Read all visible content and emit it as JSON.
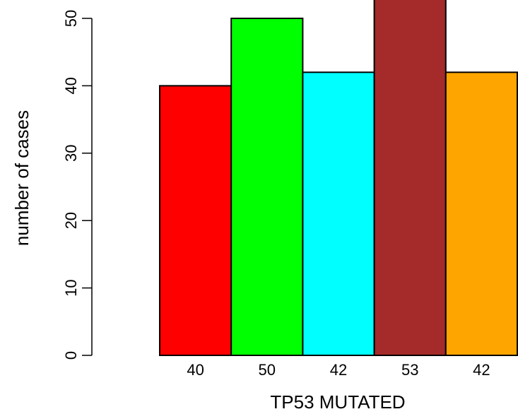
{
  "chart_data": {
    "type": "bar",
    "categories": [
      "40",
      "50",
      "42",
      "53",
      "42"
    ],
    "values": [
      40,
      50,
      42,
      53,
      42
    ],
    "colors": [
      "#ff0000",
      "#00ff00",
      "#00ffff",
      "#a52a2a",
      "#ffa500"
    ],
    "xlabel": "TP53 MUTATED",
    "ylabel": "number of cases",
    "yticks": [
      0,
      10,
      20,
      30,
      40,
      50
    ],
    "ylim": [
      0,
      53
    ],
    "grid": false,
    "legend": "none"
  }
}
